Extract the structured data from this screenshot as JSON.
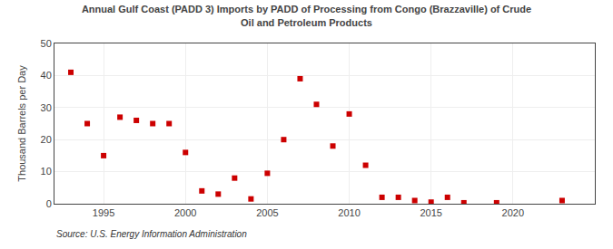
{
  "chart_data": {
    "type": "scatter",
    "title": "Annual Gulf Coast (PADD 3) Imports by PADD of Processing from Congo (Brazzaville) of Crude\nOil and Petroleum Products",
    "ylabel": "Thousand Barrels per Day",
    "annotations": [
      "Source: U.S. Energy Information Administration"
    ],
    "x": [
      1993,
      1994,
      1995,
      1996,
      1997,
      1998,
      1999,
      2000,
      2001,
      2002,
      2003,
      2004,
      2005,
      2006,
      2007,
      2008,
      2009,
      2010,
      2011,
      2012,
      2013,
      2014,
      2015,
      2016,
      2017,
      2019,
      2023
    ],
    "values": [
      41,
      25,
      15,
      27,
      26,
      25,
      25,
      16,
      4,
      3,
      8,
      1.5,
      9.5,
      20,
      39,
      31,
      18,
      28,
      12,
      2,
      2,
      1,
      0.5,
      2,
      0.3,
      0.3,
      1
    ],
    "color": "#cc0000",
    "marker": "square",
    "xlim": [
      1992,
      2025
    ],
    "xticks": [
      1995,
      2000,
      2005,
      2010,
      2015,
      2020
    ],
    "ylim": [
      0,
      50
    ],
    "yticks": [
      0,
      10,
      20,
      30,
      40,
      50
    ],
    "grid": true
  }
}
